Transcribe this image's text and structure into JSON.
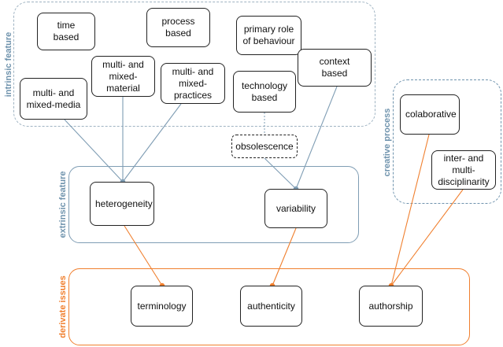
{
  "groups": {
    "intrinsic": "intrinsic feature",
    "extrinsic": "extrinsic feature",
    "derivate": "derivate issues",
    "creative": "creative process"
  },
  "nodes": {
    "time_based": "time\nbased",
    "process_based": "process\nbased",
    "primary_role": "primary role\nof behaviour",
    "multi_mixed_material": "multi- and\nmixed-\nmaterial",
    "multi_mixed_practices": "multi- and\nmixed-\npractices",
    "context_based": "context\nbased",
    "multi_mixed_media": "multi- and\nmixed-media",
    "technology_based": "technology\nbased",
    "obsolescence": "obsolescence",
    "heterogeneity": "heterogeneity",
    "variability": "variability",
    "colaborative": "colaborative",
    "interdisciplinarity": "inter- and\nmulti-\ndisciplinarity",
    "terminology": "terminology",
    "authenticity": "authenticity",
    "authorship": "authorship"
  },
  "colors": {
    "blue_connector": "#7f9db4",
    "orange_connector": "#f07f2e",
    "node_border": "#222222"
  }
}
